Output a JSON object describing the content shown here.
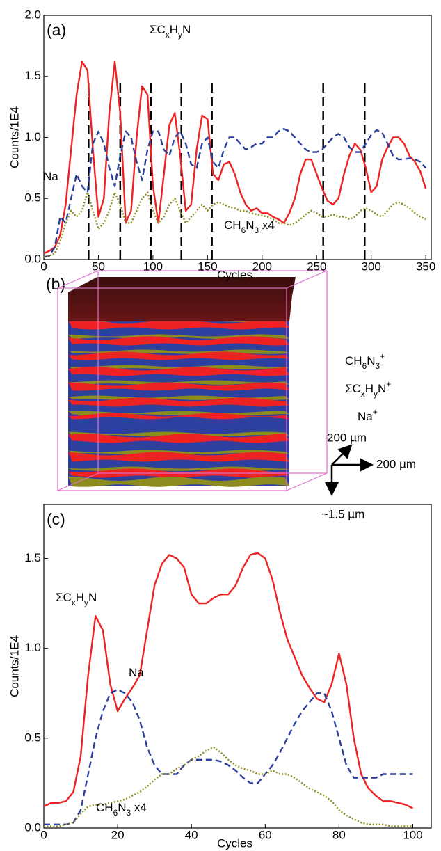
{
  "chart_data": [
    {
      "type": "line",
      "panel_label": "(a)",
      "xlabel": "Cycles",
      "ylabel": "Counts/1E4",
      "xlim": [
        0,
        355
      ],
      "xticks": [
        0,
        50,
        100,
        150,
        200,
        250,
        300,
        350
      ],
      "ylim": [
        0,
        2
      ],
      "yticks": [
        {
          "value": 0,
          "label": "0.0"
        },
        0.5,
        {
          "value": 1,
          "label": "1.0"
        },
        1.5,
        {
          "value": 2,
          "label": "2.0"
        }
      ],
      "vlines": [
        41,
        70,
        98,
        126,
        154,
        256,
        294
      ],
      "vline_color": "#000000",
      "x": [
        0,
        5,
        10,
        15,
        20,
        25,
        30,
        35,
        40,
        45,
        50,
        55,
        60,
        65,
        70,
        75,
        80,
        85,
        90,
        95,
        100,
        105,
        110,
        115,
        120,
        125,
        130,
        135,
        140,
        145,
        150,
        155,
        160,
        165,
        170,
        175,
        180,
        185,
        190,
        195,
        200,
        205,
        210,
        215,
        220,
        225,
        230,
        235,
        240,
        245,
        250,
        255,
        260,
        265,
        270,
        275,
        280,
        285,
        290,
        295,
        300,
        305,
        310,
        315,
        320,
        325,
        330,
        335,
        340,
        345,
        350
      ],
      "series": [
        {
          "name": "ΣCxHyN",
          "color": "#ee2222",
          "line_style": "solid",
          "values": [
            0.05,
            0.07,
            0.1,
            0.2,
            0.45,
            0.9,
            1.35,
            1.62,
            1.55,
            0.9,
            0.35,
            0.5,
            1.2,
            1.62,
            1.2,
            0.3,
            0.4,
            1.0,
            1.42,
            1.35,
            0.6,
            0.3,
            0.7,
            1.1,
            1.2,
            0.85,
            0.4,
            0.45,
            0.9,
            1.18,
            1.15,
            0.7,
            0.65,
            0.78,
            0.8,
            0.7,
            0.55,
            0.45,
            0.4,
            0.42,
            0.38,
            0.38,
            0.35,
            0.33,
            0.3,
            0.38,
            0.5,
            0.7,
            0.82,
            0.82,
            0.7,
            0.58,
            0.48,
            0.45,
            0.5,
            0.7,
            0.85,
            0.95,
            0.9,
            0.75,
            0.55,
            0.6,
            0.82,
            0.92,
            1.0,
            1.0,
            0.95,
            0.85,
            0.8,
            0.72,
            0.58
          ]
        },
        {
          "name": "Na",
          "color": "#2a3f9e",
          "line_style": "dashed",
          "values": [
            0.02,
            0.03,
            0.1,
            0.35,
            0.3,
            0.5,
            0.7,
            0.6,
            0.55,
            0.95,
            1.05,
            0.95,
            0.75,
            0.6,
            0.85,
            1.05,
            1.0,
            0.8,
            0.65,
            0.9,
            1.05,
            1.05,
            0.9,
            0.85,
            1.0,
            1.05,
            0.95,
            0.78,
            0.75,
            0.95,
            1.0,
            0.8,
            0.75,
            0.9,
            1.0,
            1.0,
            0.95,
            0.9,
            0.92,
            0.95,
            0.95,
            1.0,
            1.0,
            1.05,
            1.07,
            1.05,
            1.0,
            0.95,
            0.9,
            0.88,
            0.88,
            0.9,
            0.95,
            1.0,
            1.03,
            1.0,
            0.92,
            0.88,
            0.88,
            0.95,
            1.02,
            1.06,
            1.04,
            0.95,
            0.85,
            0.82,
            0.82,
            0.83,
            0.82,
            0.8,
            0.75
          ]
        },
        {
          "name": "CH6N3 x4",
          "color": "#8c8c1e",
          "line_style": "dotted",
          "values": [
            0.02,
            0.03,
            0.05,
            0.15,
            0.3,
            0.4,
            0.35,
            0.4,
            0.55,
            0.4,
            0.25,
            0.3,
            0.4,
            0.55,
            0.45,
            0.3,
            0.3,
            0.4,
            0.5,
            0.55,
            0.4,
            0.3,
            0.35,
            0.45,
            0.5,
            0.4,
            0.3,
            0.35,
            0.4,
            0.45,
            0.4,
            0.45,
            0.47,
            0.45,
            0.43,
            0.42,
            0.4,
            0.4,
            0.38,
            0.37,
            0.36,
            0.35,
            0.33,
            0.3,
            0.3,
            0.28,
            0.3,
            0.33,
            0.37,
            0.4,
            0.38,
            0.35,
            0.35,
            0.37,
            0.35,
            0.35,
            0.33,
            0.35,
            0.4,
            0.42,
            0.4,
            0.37,
            0.35,
            0.4,
            0.45,
            0.47,
            0.45,
            0.42,
            0.38,
            0.35,
            0.33
          ]
        }
      ]
    },
    {
      "type": "line",
      "panel_label": "(c)",
      "xlabel": "Cycles",
      "ylabel": "Counts/1E4",
      "xlim": [
        0,
        105
      ],
      "xticks": [
        0,
        20,
        40,
        60,
        80,
        100
      ],
      "ylim": [
        0,
        1.8
      ],
      "yticks": [
        {
          "value": 0,
          "label": "0.0"
        },
        0.5,
        {
          "value": 1,
          "label": "1.0"
        },
        1.5
      ],
      "x": [
        0,
        2,
        4,
        6,
        8,
        10,
        12,
        14,
        16,
        18,
        20,
        22,
        24,
        26,
        28,
        30,
        32,
        34,
        36,
        38,
        40,
        42,
        44,
        46,
        48,
        50,
        52,
        54,
        56,
        58,
        60,
        62,
        64,
        66,
        68,
        70,
        72,
        74,
        76,
        78,
        80,
        82,
        84,
        86,
        88,
        90,
        92,
        94,
        96,
        98,
        100
      ],
      "series": [
        {
          "name": "ΣCxHyN",
          "color": "#ee2222",
          "line_style": "solid",
          "values": [
            0.12,
            0.14,
            0.14,
            0.15,
            0.2,
            0.4,
            0.85,
            1.18,
            1.1,
            0.8,
            0.65,
            0.72,
            0.78,
            0.85,
            1.1,
            1.35,
            1.47,
            1.52,
            1.5,
            1.45,
            1.3,
            1.25,
            1.25,
            1.28,
            1.3,
            1.3,
            1.35,
            1.45,
            1.52,
            1.53,
            1.5,
            1.38,
            1.2,
            1.05,
            0.95,
            0.85,
            0.78,
            0.72,
            0.7,
            0.8,
            0.97,
            0.8,
            0.5,
            0.3,
            0.22,
            0.18,
            0.15,
            0.15,
            0.14,
            0.13,
            0.11
          ]
        },
        {
          "name": "Na",
          "color": "#2a3f9e",
          "line_style": "dashed",
          "values": [
            0.02,
            0.02,
            0.02,
            0.02,
            0.03,
            0.1,
            0.3,
            0.5,
            0.65,
            0.75,
            0.77,
            0.75,
            0.7,
            0.6,
            0.45,
            0.35,
            0.3,
            0.3,
            0.3,
            0.35,
            0.38,
            0.38,
            0.38,
            0.38,
            0.37,
            0.35,
            0.32,
            0.28,
            0.25,
            0.25,
            0.3,
            0.35,
            0.42,
            0.5,
            0.58,
            0.65,
            0.7,
            0.75,
            0.75,
            0.65,
            0.5,
            0.35,
            0.28,
            0.28,
            0.28,
            0.28,
            0.3,
            0.3,
            0.3,
            0.3,
            0.3
          ]
        },
        {
          "name": "CH6N3 x4",
          "color": "#8c8c1e",
          "line_style": "dotted",
          "values": [
            0.01,
            0.01,
            0.01,
            0.02,
            0.03,
            0.08,
            0.12,
            0.13,
            0.13,
            0.14,
            0.15,
            0.16,
            0.18,
            0.2,
            0.23,
            0.27,
            0.3,
            0.3,
            0.33,
            0.35,
            0.38,
            0.4,
            0.43,
            0.45,
            0.42,
            0.38,
            0.35,
            0.33,
            0.32,
            0.3,
            0.3,
            0.32,
            0.3,
            0.3,
            0.28,
            0.25,
            0.22,
            0.2,
            0.18,
            0.15,
            0.1,
            0.07,
            0.05,
            0.03,
            0.02,
            0.02,
            0.02,
            0.01,
            0.01,
            0.01,
            0.01
          ]
        }
      ]
    }
  ],
  "image_panel": {
    "panel_label": "(b)",
    "legend": [
      {
        "name": "CH6N3+",
        "color": "#8c8c1e"
      },
      {
        "name": "ΣCxHyN+",
        "color": "#ee2222"
      },
      {
        "name": "Na+",
        "color": "#2a3f9e"
      }
    ],
    "scale": {
      "y": "200 µm",
      "x": "200 µm",
      "z": "~1.5 µm"
    }
  }
}
